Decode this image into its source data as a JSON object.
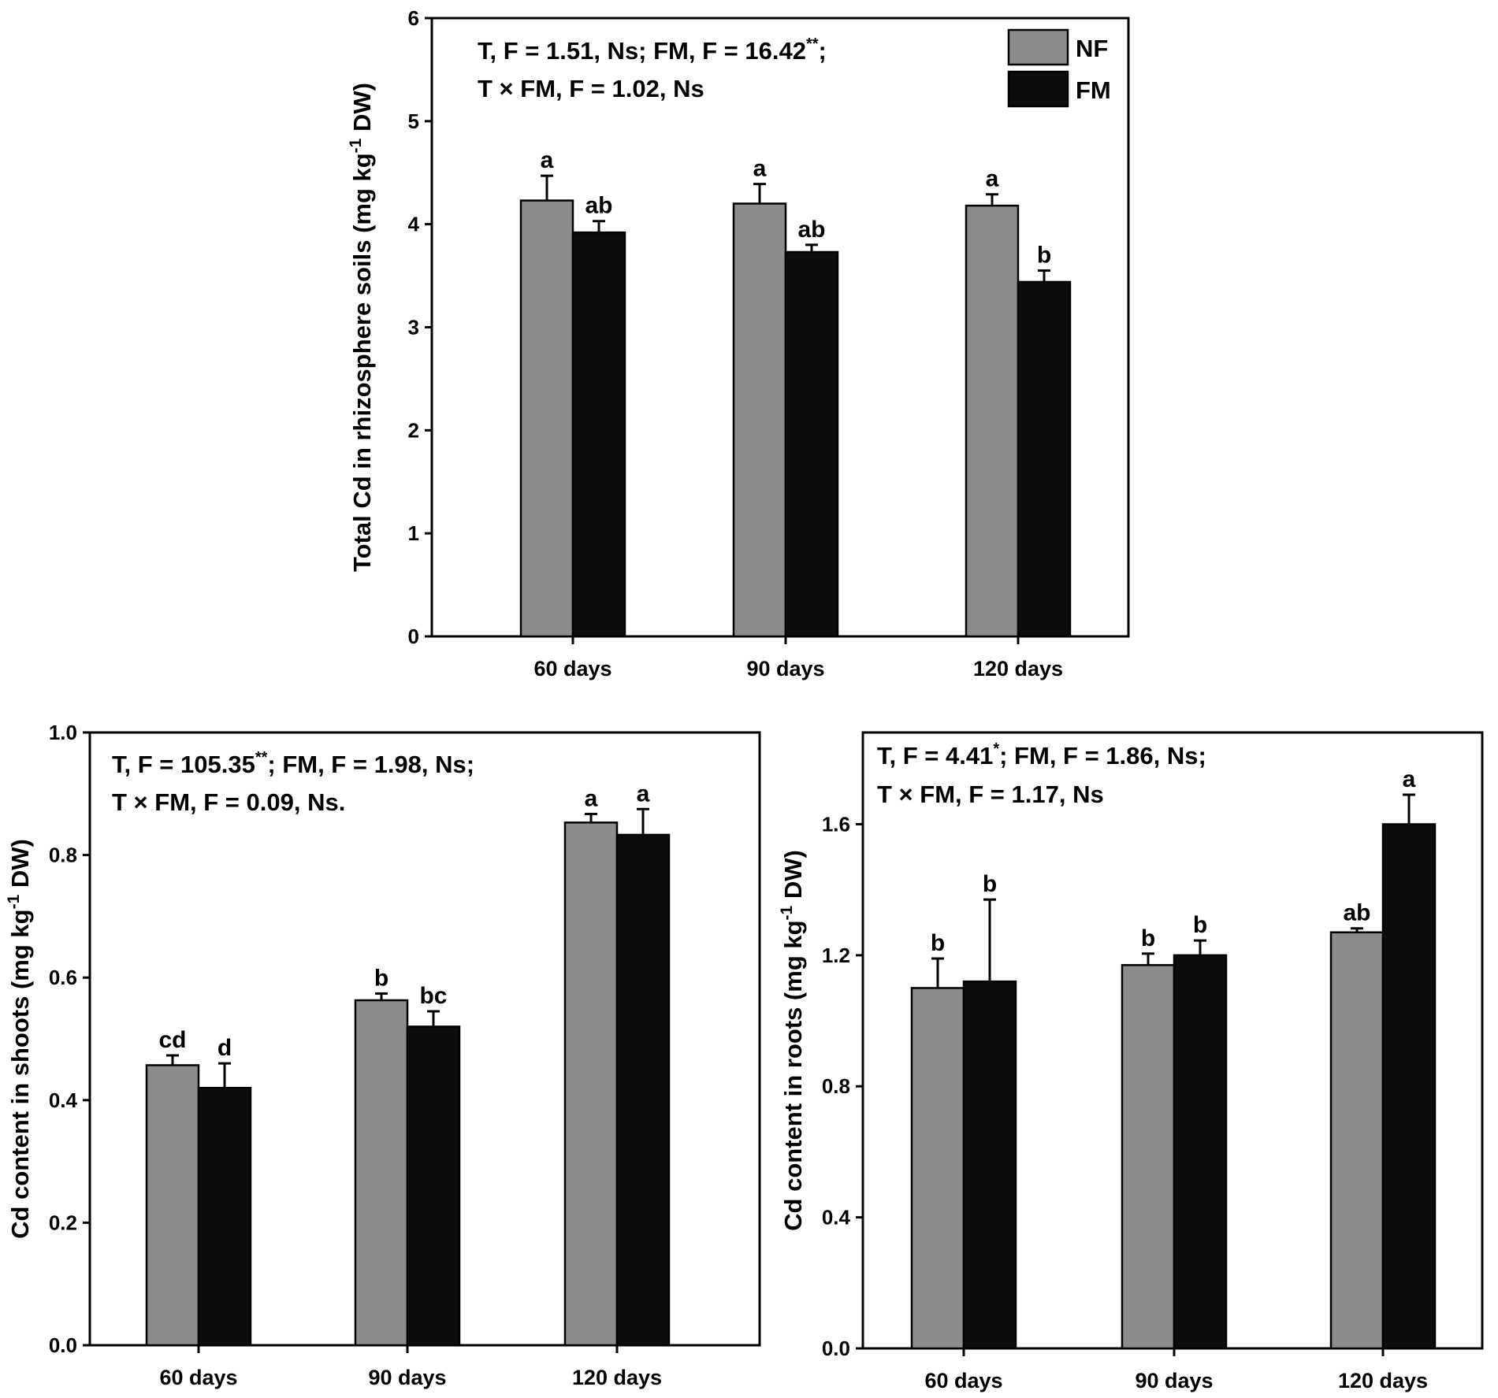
{
  "chart_data": [
    {
      "type": "bar",
      "ylabel_main": "Total Cd in rhizosphere soils (mg kg",
      "ylabel_sup": "-1",
      "ylabel_end": " DW)",
      "ylim": [
        0,
        6
      ],
      "yticks": [
        "0",
        "1",
        "2",
        "3",
        "4",
        "5",
        "6"
      ],
      "categories": [
        "60 days",
        "90 days",
        "120 days"
      ],
      "series": [
        {
          "name": "NF",
          "color": "#8c8c8c",
          "values": [
            4.23,
            4.2,
            4.18
          ],
          "errors": [
            0.24,
            0.19,
            0.11
          ],
          "letters": [
            "a",
            "a",
            "a"
          ]
        },
        {
          "name": "FM",
          "color": "#0d0d0d",
          "values": [
            3.92,
            3.73,
            3.44
          ],
          "errors": [
            0.11,
            0.07,
            0.11
          ],
          "letters": [
            "ab",
            "ab",
            "b"
          ]
        }
      ],
      "stats": [
        {
          "parts": [
            {
              "t": "T, F = 1.51, Ns; FM, F = 16.42"
            },
            {
              "t": "**",
              "sup": true
            },
            {
              "t": ";"
            }
          ]
        },
        {
          "parts": [
            {
              "t": "T × FM, F = 1.02, Ns"
            }
          ]
        }
      ],
      "legend": {
        "position": "top-right",
        "entries": [
          "NF",
          "FM"
        ]
      }
    },
    {
      "type": "bar",
      "ylabel_main": "Cd content in shoots  (mg kg",
      "ylabel_sup": "-1",
      "ylabel_end": " DW)",
      "ylim": [
        0,
        1.0
      ],
      "yticks": [
        "0.0",
        "0.2",
        "0.4",
        "0.6",
        "0.8",
        "1.0"
      ],
      "categories": [
        "60 days",
        "90 days",
        "120 days"
      ],
      "series": [
        {
          "name": "NF",
          "color": "#8c8c8c",
          "values": [
            0.457,
            0.563,
            0.853
          ],
          "errors": [
            0.016,
            0.011,
            0.014
          ],
          "letters": [
            "cd",
            "b",
            "a"
          ]
        },
        {
          "name": "FM",
          "color": "#0d0d0d",
          "values": [
            0.42,
            0.52,
            0.833
          ],
          "errors": [
            0.04,
            0.025,
            0.042
          ],
          "letters": [
            "d",
            "bc",
            "a"
          ]
        }
      ],
      "stats": [
        {
          "parts": [
            {
              "t": "T, F = 105.35"
            },
            {
              "t": "**",
              "sup": true
            },
            {
              "t": "; FM, F = 1.98, Ns;"
            }
          ]
        },
        {
          "parts": [
            {
              "t": "T × FM, F = 0.09, Ns."
            }
          ]
        }
      ]
    },
    {
      "type": "bar",
      "ylabel_main": "Cd content in roots  (mg kg",
      "ylabel_sup": "-1",
      "ylabel_end": " DW)",
      "ylim": [
        0,
        1.88
      ],
      "yticks": [
        "0.0",
        "0.4",
        "0.8",
        "1.2",
        "1.6"
      ],
      "categories": [
        "60 days",
        "90 days",
        "120 days"
      ],
      "series": [
        {
          "name": "NF",
          "color": "#8c8c8c",
          "values": [
            1.1,
            1.17,
            1.27
          ],
          "errors": [
            0.09,
            0.035,
            0.012
          ],
          "letters": [
            "b",
            "b",
            "ab"
          ]
        },
        {
          "name": "FM",
          "color": "#0d0d0d",
          "values": [
            1.12,
            1.2,
            1.6
          ],
          "errors": [
            0.25,
            0.045,
            0.09
          ],
          "letters": [
            "b",
            "b",
            "a"
          ]
        }
      ],
      "stats": [
        {
          "parts": [
            {
              "t": "T, F = 4.41"
            },
            {
              "t": "*",
              "sup": true
            },
            {
              "t": "; FM, F = 1.86, Ns;"
            }
          ]
        },
        {
          "parts": [
            {
              "t": "T × FM, F = 1.17, Ns"
            }
          ]
        }
      ]
    }
  ]
}
